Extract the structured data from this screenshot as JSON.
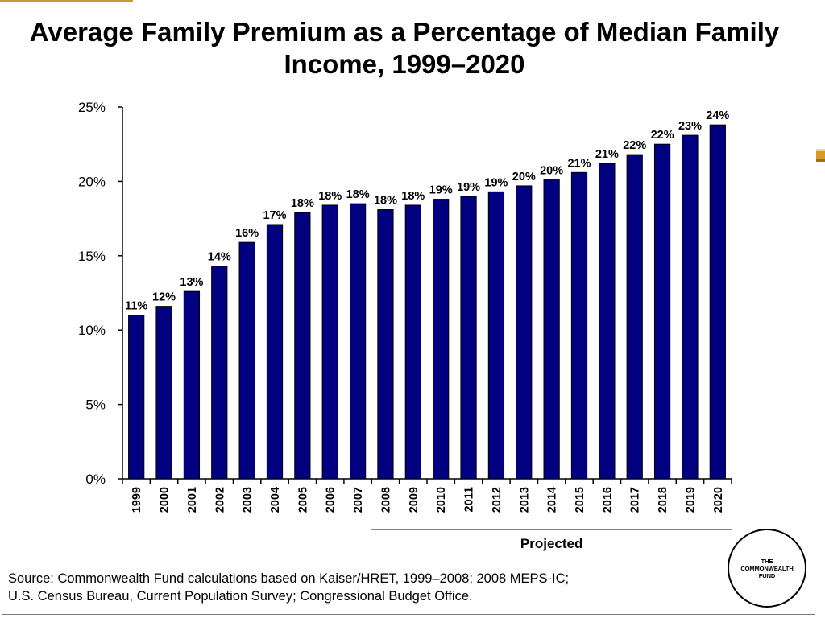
{
  "title": {
    "line1": "Average Family Premium as a Percentage of Median Family",
    "line2": "Income, 1999–2020"
  },
  "source": {
    "line1": "Source: Commonwealth Fund calculations based on Kaiser/HRET, 1999–2008; 2008 MEPS-IC;",
    "line2": "U.S. Census Bureau, Current Population Survey; Congressional Budget Office."
  },
  "logo": {
    "line1": "THE",
    "line2": "COMMONWEALTH",
    "line3": "FUND"
  },
  "colors": {
    "bar": "#000080",
    "bar_outline": "#000000",
    "accent": "#d79b25"
  },
  "chart_data": {
    "type": "bar",
    "title": "Average Family Premium as a Percentage of Median Family Income, 1999–2020",
    "xlabel": "",
    "ylabel": "",
    "ylim": [
      0,
      25
    ],
    "y_ticks": [
      "0%",
      "5%",
      "10%",
      "15%",
      "20%",
      "25%"
    ],
    "grid": false,
    "categories": [
      "1999",
      "2000",
      "2001",
      "2002",
      "2003",
      "2004",
      "2005",
      "2006",
      "2007",
      "2008",
      "2009",
      "2010",
      "2011",
      "2012",
      "2013",
      "2014",
      "2015",
      "2016",
      "2017",
      "2018",
      "2019",
      "2020"
    ],
    "values": [
      11.0,
      11.6,
      12.6,
      14.3,
      15.9,
      17.1,
      17.9,
      18.4,
      18.5,
      18.1,
      18.4,
      18.8,
      19.0,
      19.3,
      19.7,
      20.1,
      20.6,
      21.2,
      21.8,
      22.5,
      23.1,
      23.8
    ],
    "data_labels": [
      "11%",
      "12%",
      "13%",
      "14%",
      "16%",
      "17%",
      "18%",
      "18%",
      "18%",
      "18%",
      "18%",
      "19%",
      "19%",
      "19%",
      "20%",
      "20%",
      "21%",
      "21%",
      "22%",
      "22%",
      "23%",
      "24%"
    ],
    "annotation": {
      "text": "Projected",
      "from": "2008",
      "to": "2020"
    }
  }
}
